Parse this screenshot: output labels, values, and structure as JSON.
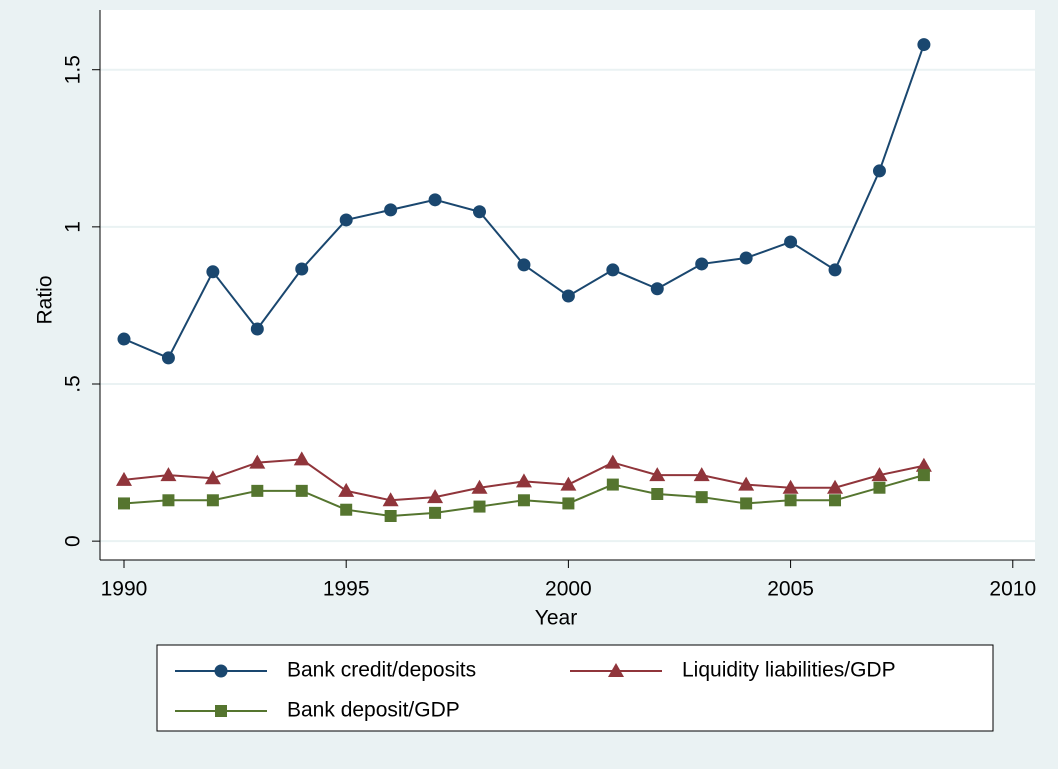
{
  "chart_data": {
    "type": "line",
    "x_label": "Year",
    "y_label": "Ratio",
    "x": [
      1990,
      1991,
      1992,
      1993,
      1994,
      1995,
      1996,
      1997,
      1998,
      1999,
      2000,
      2001,
      2002,
      2003,
      2004,
      2005,
      2006,
      2007,
      2008
    ],
    "series": [
      {
        "name": "Bank credit/deposits",
        "color": "#1a476f",
        "marker": "circle",
        "values": [
          0.643,
          0.583,
          0.857,
          0.675,
          0.866,
          1.022,
          1.054,
          1.086,
          1.048,
          0.879,
          0.78,
          0.863,
          0.803,
          0.882,
          0.901,
          0.952,
          0.863,
          1.178,
          1.58
        ]
      },
      {
        "name": "Liquidity liabilities/GDP",
        "color": "#90353b",
        "marker": "triangle",
        "values": [
          0.195,
          0.21,
          0.2,
          0.25,
          0.26,
          0.16,
          0.13,
          0.14,
          0.17,
          0.19,
          0.18,
          0.25,
          0.21,
          0.21,
          0.18,
          0.17,
          0.17,
          0.21,
          0.24
        ]
      },
      {
        "name": "Bank deposit/GDP",
        "color": "#55752f",
        "marker": "square",
        "values": [
          0.12,
          0.13,
          0.13,
          0.16,
          0.16,
          0.1,
          0.08,
          0.09,
          0.11,
          0.13,
          0.12,
          0.18,
          0.15,
          0.14,
          0.12,
          0.13,
          0.13,
          0.17,
          0.21
        ]
      }
    ],
    "xlim": [
      1989.46,
      2010.5
    ],
    "xticks": [
      1990,
      1995,
      2000,
      2005,
      2010
    ],
    "ylim": [
      -0.06,
      1.69
    ],
    "yticks": [
      0,
      {
        "value": 0.5,
        "label": ".5"
      },
      1,
      1.5
    ],
    "grid": true,
    "legend": "bottom"
  }
}
